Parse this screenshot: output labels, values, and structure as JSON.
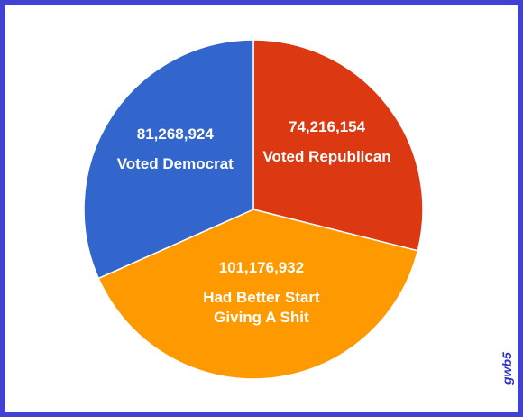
{
  "chart_data": {
    "type": "pie",
    "categories": [
      "Voted Republican",
      "Had Better Start Giving A Shit",
      "Voted Democrat"
    ],
    "values": [
      74216154,
      101176932,
      81268924
    ],
    "value_labels": [
      "74,216,154",
      "101,176,932",
      "81,268,924"
    ],
    "colors": [
      "#dc3912",
      "#ff9900",
      "#3366cc"
    ],
    "watermark": "gwb5"
  }
}
